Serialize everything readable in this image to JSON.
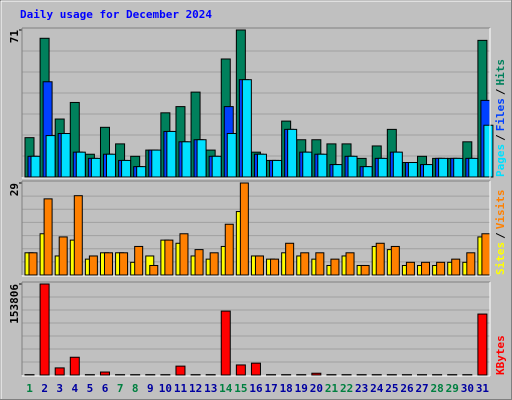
{
  "title": "Daily usage for December 2024",
  "legend_separator": "/",
  "chart_data": [
    {
      "type": "bar",
      "ylim": [
        0,
        71
      ],
      "yticks": [
        71
      ],
      "series": [
        {
          "name": "Hits",
          "color": "#00805c",
          "values": [
            19,
            67,
            28,
            36,
            11,
            24,
            16,
            10,
            13,
            31,
            34,
            41,
            13,
            57,
            71,
            12,
            8,
            27,
            18,
            18,
            16,
            16,
            9,
            15,
            23,
            7,
            10,
            9,
            9,
            17,
            66
          ]
        },
        {
          "name": "Files",
          "color": "#0040ff",
          "values": [
            10,
            46,
            21,
            12,
            9,
            11,
            8,
            5,
            13,
            22,
            17,
            18,
            10,
            34,
            47,
            11,
            8,
            23,
            12,
            11,
            6,
            10,
            5,
            9,
            12,
            7,
            6,
            9,
            9,
            9,
            37
          ]
        },
        {
          "name": "Pages",
          "color": "#00e0ff",
          "values": [
            10,
            20,
            21,
            12,
            9,
            11,
            8,
            5,
            13,
            22,
            17,
            18,
            10,
            21,
            47,
            11,
            8,
            23,
            12,
            11,
            6,
            10,
            5,
            9,
            12,
            7,
            6,
            9,
            9,
            9,
            25
          ]
        }
      ]
    },
    {
      "type": "bar",
      "ylim": [
        0,
        29
      ],
      "yticks": [
        29
      ],
      "series": [
        {
          "name": "Sites",
          "color": "#ffff00",
          "values": [
            7,
            13,
            6,
            11,
            5,
            7,
            7,
            4,
            6,
            11,
            10,
            6,
            5,
            9,
            20,
            6,
            5,
            7,
            6,
            5,
            3,
            6,
            3,
            9,
            8,
            3,
            3,
            3,
            4,
            4,
            12
          ]
        },
        {
          "name": "Visits",
          "color": "#ff8000",
          "values": [
            7,
            24,
            12,
            25,
            6,
            7,
            7,
            9,
            3,
            11,
            13,
            8,
            7,
            16,
            29,
            6,
            5,
            10,
            7,
            7,
            5,
            7,
            3,
            10,
            9,
            4,
            4,
            4,
            5,
            7,
            13
          ]
        }
      ]
    },
    {
      "type": "bar",
      "ylim": [
        0,
        153806
      ],
      "yticks": [
        153806
      ],
      "categories": [
        "1",
        "2",
        "3",
        "4",
        "5",
        "6",
        "7",
        "8",
        "9",
        "10",
        "11",
        "12",
        "13",
        "14",
        "15",
        "16",
        "17",
        "18",
        "19",
        "20",
        "21",
        "22",
        "23",
        "24",
        "25",
        "26",
        "27",
        "28",
        "29",
        "30",
        "31"
      ],
      "category_colors": [
        "#008040",
        "#0000a0",
        "#0000a0",
        "#0000a0",
        "#0000a0",
        "#0000a0",
        "#008040",
        "#008040",
        "#0000a0",
        "#0000a0",
        "#0000a0",
        "#0000a0",
        "#0000a0",
        "#008040",
        "#008040",
        "#0000a0",
        "#0000a0",
        "#0000a0",
        "#0000a0",
        "#0000a0",
        "#008040",
        "#008040",
        "#0000a0",
        "#0000a0",
        "#0000a0",
        "#0000a0",
        "#0000a0",
        "#008040",
        "#008040",
        "#0000a0",
        "#0000a0"
      ],
      "series": [
        {
          "name": "KBytes",
          "color": "#ff0000",
          "values": [
            600,
            153806,
            12000,
            30000,
            600,
            5000,
            600,
            600,
            600,
            600,
            15000,
            600,
            600,
            108000,
            17000,
            20000,
            600,
            600,
            600,
            3000,
            600,
            600,
            600,
            600,
            600,
            600,
            600,
            600,
            600,
            600,
            103000
          ]
        }
      ]
    }
  ]
}
